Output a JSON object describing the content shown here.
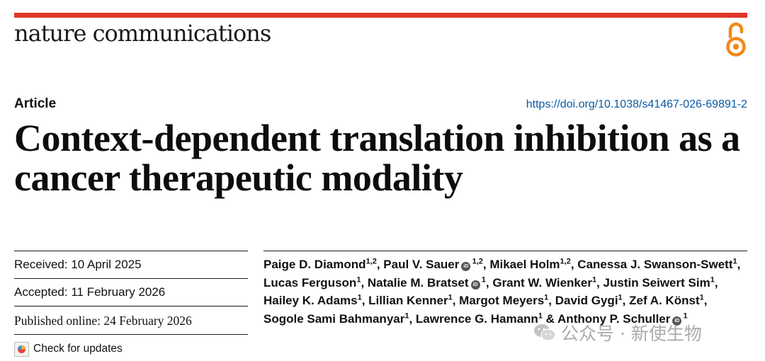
{
  "colors": {
    "accent_red": "#e2362a",
    "orange": "#f08a1c",
    "doi_blue": "#0a5aa5",
    "orcid_gray": "#555555",
    "text": "#111111"
  },
  "header": {
    "journal_name": "nature communications",
    "open_access_icon": "open-access-lock"
  },
  "article": {
    "type": "Article",
    "doi": "https://doi.org/10.1038/s41467-026-69891-2",
    "title": "Context-dependent translation inhibition as a cancer therapeutic modality"
  },
  "dates": {
    "received": "Received: 10 April 2025",
    "accepted": "Accepted: 11 February 2026",
    "published": "Published online: 24 February 2026"
  },
  "check_updates": {
    "label": "Check for updates"
  },
  "orcid_label": "iD",
  "authors": [
    {
      "name": "Paige D. Diamond",
      "aff": "1,2",
      "orcid": false,
      "sep": ", "
    },
    {
      "name": "Paul V. Sauer",
      "aff": "1,2",
      "orcid": true,
      "sep": ", "
    },
    {
      "name": "Mikael Holm",
      "aff": "1,2",
      "orcid": false,
      "sep": ", "
    },
    {
      "name": "Canessa J. Swanson-Swett",
      "aff": "1",
      "orcid": false,
      "sep": ", "
    },
    {
      "name": "Lucas Ferguson",
      "aff": "1",
      "orcid": false,
      "sep": ", "
    },
    {
      "name": "Natalie M. Bratset",
      "aff": "1",
      "orcid": true,
      "sep": ", "
    },
    {
      "name": "Grant W. Wienker",
      "aff": "1",
      "orcid": false,
      "sep": ", "
    },
    {
      "name": "Justin Seiwert Sim",
      "aff": "1",
      "orcid": false,
      "sep": ", "
    },
    {
      "name": "Hailey K. Adams",
      "aff": "1",
      "orcid": false,
      "sep": ", "
    },
    {
      "name": "Lillian Kenner",
      "aff": "1",
      "orcid": false,
      "sep": ", "
    },
    {
      "name": "Margot Meyers",
      "aff": "1",
      "orcid": false,
      "sep": ", "
    },
    {
      "name": "David Gygi",
      "aff": "1",
      "orcid": false,
      "sep": ", "
    },
    {
      "name": "Zef A. Könst",
      "aff": "1",
      "orcid": false,
      "sep": ", "
    },
    {
      "name": "Sogole Sami Bahmanyar",
      "aff": "1",
      "orcid": false,
      "sep": ", "
    },
    {
      "name": "Lawrence G. Hamann",
      "aff": "1",
      "orcid": false,
      "sep": " & "
    },
    {
      "name": "Anthony P. Schuller",
      "aff": "1",
      "orcid": true,
      "sep": ""
    }
  ],
  "watermark": {
    "text": "公众号 · 新使生物"
  }
}
